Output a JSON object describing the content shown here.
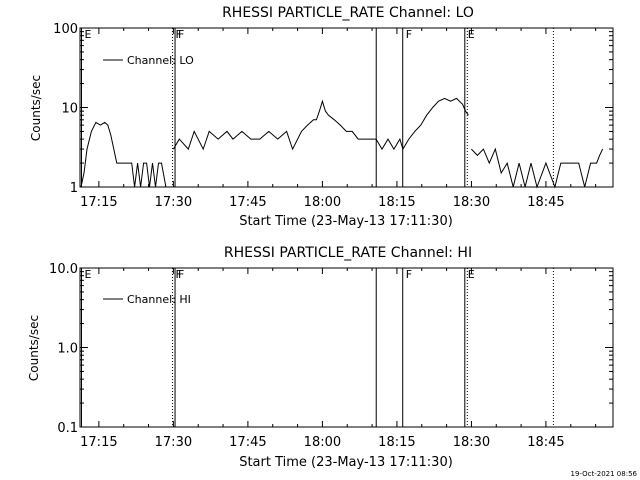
{
  "timestamp": "19-Oct-2021 08:56",
  "chart_data": [
    {
      "type": "line",
      "title": "RHESSI PARTICLE_RATE Channel: LO",
      "xlabel": "Start Time (23-May-13 17:11:30)",
      "ylabel": "Counts/sec",
      "x_ticks": [
        "17:15",
        "17:30",
        "17:45",
        "18:00",
        "18:15",
        "18:30",
        "18:45"
      ],
      "y_ticks": [
        "1",
        "10",
        "100"
      ],
      "y_scale": "log",
      "ylim": [
        1,
        100
      ],
      "xlim_minutes": [
        17.18,
        18.97
      ],
      "markers": [
        {
          "label": "E",
          "time": "17:11:30",
          "style": "solid"
        },
        {
          "label": "F",
          "time": "17:29:50",
          "style": "dotted"
        },
        {
          "label": "F",
          "time": "17:30:20",
          "style": "solid"
        },
        {
          "label": "",
          "time": "18:10:50",
          "style": "solid"
        },
        {
          "label": "F",
          "time": "18:16:10",
          "style": "solid"
        },
        {
          "label": "E",
          "time": "18:28:40",
          "style": "solid"
        },
        {
          "label": "",
          "time": "18:29:10",
          "style": "dotted"
        },
        {
          "label": "",
          "time": "18:46:30",
          "style": "dotted"
        }
      ],
      "legend": "Channel: LO",
      "series": [
        {
          "name": "Channel: LO",
          "segments": [
            [
              [
                17.19,
                1
              ],
              [
                17.2,
                1.5
              ],
              [
                17.21,
                3
              ],
              [
                17.225,
                5
              ],
              [
                17.24,
                6.5
              ],
              [
                17.255,
                6
              ],
              [
                17.27,
                6.5
              ],
              [
                17.28,
                6
              ],
              [
                17.29,
                4.5
              ],
              [
                17.3,
                3
              ],
              [
                17.31,
                2
              ],
              [
                17.35,
                2
              ],
              [
                17.36,
                2
              ],
              [
                17.37,
                1
              ],
              [
                17.38,
                2
              ],
              [
                17.39,
                1
              ],
              [
                17.4,
                2
              ],
              [
                17.41,
                2
              ],
              [
                17.42,
                1
              ],
              [
                17.43,
                2
              ],
              [
                17.44,
                1
              ],
              [
                17.45,
                2
              ],
              [
                17.46,
                2
              ],
              [
                17.475,
                1
              ],
              [
                17.48,
                1
              ]
            ],
            [
              [
                17.5,
                3
              ],
              [
                17.52,
                4
              ],
              [
                17.55,
                3
              ],
              [
                17.57,
                5
              ],
              [
                17.6,
                3
              ],
              [
                17.62,
                5
              ],
              [
                17.65,
                4
              ],
              [
                17.68,
                5
              ],
              [
                17.7,
                4
              ],
              [
                17.73,
                5
              ],
              [
                17.76,
                4
              ],
              [
                17.79,
                4
              ],
              [
                17.82,
                5
              ],
              [
                17.85,
                4
              ],
              [
                17.88,
                5
              ],
              [
                17.9,
                3
              ],
              [
                17.93,
                5
              ],
              [
                17.95,
                6
              ],
              [
                17.97,
                7
              ],
              [
                17.98,
                7
              ],
              [
                17.99,
                9
              ],
              [
                18.0,
                12
              ],
              [
                18.01,
                9
              ],
              [
                18.02,
                8
              ],
              [
                18.04,
                7
              ],
              [
                18.06,
                6
              ],
              [
                18.08,
                5
              ],
              [
                18.1,
                5
              ],
              [
                18.12,
                4
              ],
              [
                18.14,
                4
              ],
              [
                18.16,
                4
              ],
              [
                18.18,
                4
              ]
            ],
            [
              [
                18.18,
                4
              ],
              [
                18.2,
                3
              ],
              [
                18.22,
                4
              ],
              [
                18.24,
                3
              ],
              [
                18.26,
                4
              ],
              [
                18.27,
                3
              ],
              [
                18.29,
                4
              ],
              [
                18.31,
                5
              ],
              [
                18.33,
                6
              ],
              [
                18.35,
                8
              ],
              [
                18.37,
                10
              ],
              [
                18.39,
                12
              ],
              [
                18.41,
                13
              ],
              [
                18.43,
                12
              ],
              [
                18.45,
                13
              ],
              [
                18.47,
                11
              ],
              [
                18.48,
                9
              ],
              [
                18.49,
                8
              ]
            ],
            [
              [
                18.5,
                3
              ],
              [
                18.52,
                2.5
              ],
              [
                18.54,
                3
              ],
              [
                18.56,
                2
              ],
              [
                18.58,
                3
              ],
              [
                18.6,
                1.5
              ],
              [
                18.62,
                2
              ],
              [
                18.64,
                1
              ],
              [
                18.66,
                2
              ],
              [
                18.68,
                1
              ],
              [
                18.7,
                2
              ],
              [
                18.72,
                1
              ],
              [
                18.75,
                2
              ],
              [
                18.78,
                1
              ],
              [
                18.8,
                2
              ],
              [
                18.83,
                2
              ],
              [
                18.86,
                2
              ],
              [
                18.88,
                1
              ],
              [
                18.9,
                2
              ],
              [
                18.92,
                2
              ],
              [
                18.93,
                2.5
              ],
              [
                18.94,
                3
              ]
            ]
          ]
        }
      ]
    },
    {
      "type": "line",
      "title": "RHESSI PARTICLE_RATE Channel: HI",
      "xlabel": "Start Time (23-May-13 17:11:30)",
      "ylabel": "Counts/sec",
      "x_ticks": [
        "17:15",
        "17:30",
        "17:45",
        "18:00",
        "18:15",
        "18:30",
        "18:45"
      ],
      "y_ticks": [
        "0.1",
        "1.0",
        "10.0"
      ],
      "y_scale": "log",
      "ylim": [
        0.1,
        10
      ],
      "legend": "Channel: HI",
      "markers": [
        {
          "label": "E",
          "time": "17:11:30",
          "style": "solid"
        },
        {
          "label": "F",
          "time": "17:29:50",
          "style": "dotted"
        },
        {
          "label": "F",
          "time": "17:30:20",
          "style": "solid"
        },
        {
          "label": "",
          "time": "18:10:50",
          "style": "solid"
        },
        {
          "label": "F",
          "time": "18:16:10",
          "style": "solid"
        },
        {
          "label": "E",
          "time": "18:28:40",
          "style": "solid"
        },
        {
          "label": "",
          "time": "18:29:10",
          "style": "dotted"
        },
        {
          "label": "",
          "time": "18:46:30",
          "style": "dotted"
        }
      ],
      "series": []
    }
  ]
}
